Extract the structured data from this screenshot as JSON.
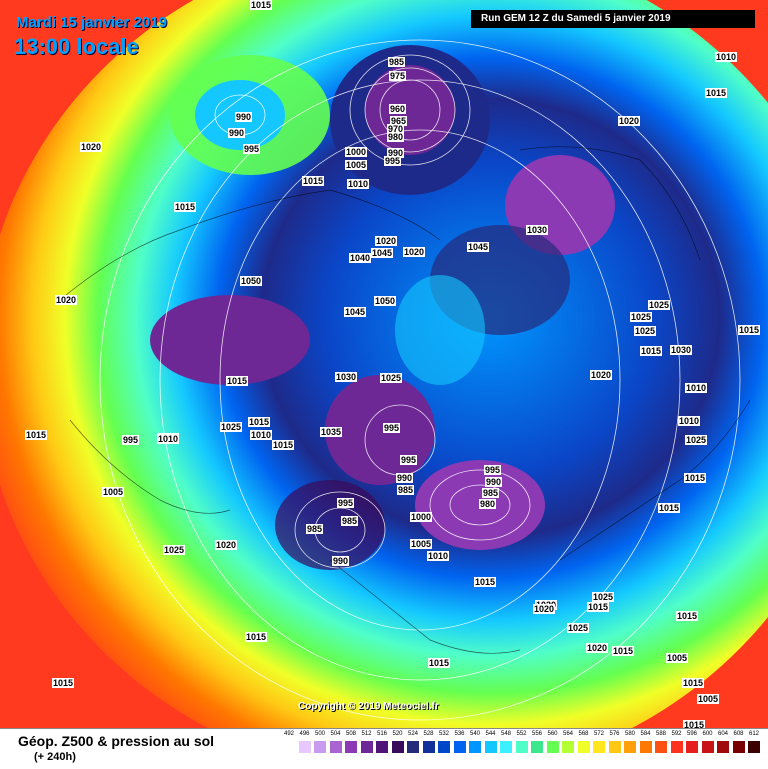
{
  "header": {
    "date_line": "Mardi 15 janvier 2019",
    "time_line": "13:00 locale",
    "run_line": "Run GEM 12 Z du Samedi 5 janvier 2019"
  },
  "copyright": "Copyright © 2019 Meteociel.fr",
  "footer": {
    "title": "Géop. Z500 & pression au sol",
    "subtitle": "(+ 240h)"
  },
  "legend": {
    "values": [
      "492",
      "496",
      "500",
      "504",
      "508",
      "512",
      "516",
      "520",
      "524",
      "528",
      "532",
      "536",
      "540",
      "544",
      "548",
      "552",
      "556",
      "560",
      "564",
      "568",
      "572",
      "576",
      "580",
      "584",
      "588",
      "592",
      "596",
      "600",
      "604",
      "608",
      "612"
    ],
    "colors": [
      "#ffffff",
      "#e6c8ff",
      "#c89bf0",
      "#aa64d2",
      "#8c3ab4",
      "#6e2896",
      "#501478",
      "#3a0a5a",
      "#262a7a",
      "#10309a",
      "#0046c8",
      "#0064f0",
      "#0096ff",
      "#14c8ff",
      "#3cf0ff",
      "#50ffc8",
      "#3ce68c",
      "#64ff50",
      "#b4ff32",
      "#f0ff28",
      "#ffe61e",
      "#ffc814",
      "#ffa00a",
      "#ff7800",
      "#ff5014",
      "#ff321e",
      "#e61e1e",
      "#c81414",
      "#a00a0a",
      "#780000",
      "#3c0000"
    ]
  },
  "pressure_labels": [
    {
      "text": "1015"
    },
    {
      "text": "1010"
    },
    {
      "text": "1015"
    },
    {
      "text": "1020"
    },
    {
      "text": "990"
    },
    {
      "text": "990"
    },
    {
      "text": "995"
    },
    {
      "text": "985"
    },
    {
      "text": "975"
    },
    {
      "text": "960"
    },
    {
      "text": "965"
    },
    {
      "text": "970"
    },
    {
      "text": "980"
    },
    {
      "text": "990"
    },
    {
      "text": "995"
    },
    {
      "text": "1000"
    },
    {
      "text": "1005"
    },
    {
      "text": "1010"
    },
    {
      "text": "1015"
    },
    {
      "text": "1015"
    },
    {
      "text": "1020"
    },
    {
      "text": "1020"
    },
    {
      "text": "1040"
    },
    {
      "text": "1045"
    },
    {
      "text": "1045"
    },
    {
      "text": "1050"
    },
    {
      "text": "1050"
    },
    {
      "text": "1045"
    },
    {
      "text": "1030"
    },
    {
      "text": "1025"
    },
    {
      "text": "1025"
    },
    {
      "text": "1025"
    },
    {
      "text": "1030"
    },
    {
      "text": "1015"
    },
    {
      "text": "1020"
    },
    {
      "text": "1020"
    },
    {
      "text": "1015"
    },
    {
      "text": "1025"
    },
    {
      "text": "1015"
    },
    {
      "text": "1015"
    },
    {
      "text": "1020"
    },
    {
      "text": "1015"
    },
    {
      "text": "1015"
    },
    {
      "text": "1010"
    },
    {
      "text": "1010"
    },
    {
      "text": "1005"
    },
    {
      "text": "1025"
    },
    {
      "text": "1020"
    },
    {
      "text": "1015"
    },
    {
      "text": "1035"
    },
    {
      "text": "1030"
    },
    {
      "text": "1025"
    },
    {
      "text": "995"
    },
    {
      "text": "995"
    },
    {
      "text": "985"
    },
    {
      "text": "990"
    },
    {
      "text": "995"
    },
    {
      "text": "985"
    },
    {
      "text": "985"
    },
    {
      "text": "990"
    },
    {
      "text": "1000"
    },
    {
      "text": "1005"
    },
    {
      "text": "1010"
    },
    {
      "text": "1015"
    },
    {
      "text": "995"
    },
    {
      "text": "990"
    },
    {
      "text": "985"
    },
    {
      "text": "980"
    },
    {
      "text": "1020"
    },
    {
      "text": "1025"
    },
    {
      "text": "1025"
    },
    {
      "text": "1020"
    },
    {
      "text": "1015"
    },
    {
      "text": "1015"
    },
    {
      "text": "1015"
    },
    {
      "text": "1010"
    },
    {
      "text": "1010"
    },
    {
      "text": "1005"
    },
    {
      "text": "1015"
    },
    {
      "text": "1015"
    },
    {
      "text": "1025"
    },
    {
      "text": "1010"
    },
    {
      "text": "995"
    },
    {
      "text": "1015"
    },
    {
      "text": "1005"
    },
    {
      "text": "1015"
    },
    {
      "text": "1015"
    },
    {
      "text": "1020"
    },
    {
      "text": "1015"
    }
  ]
}
